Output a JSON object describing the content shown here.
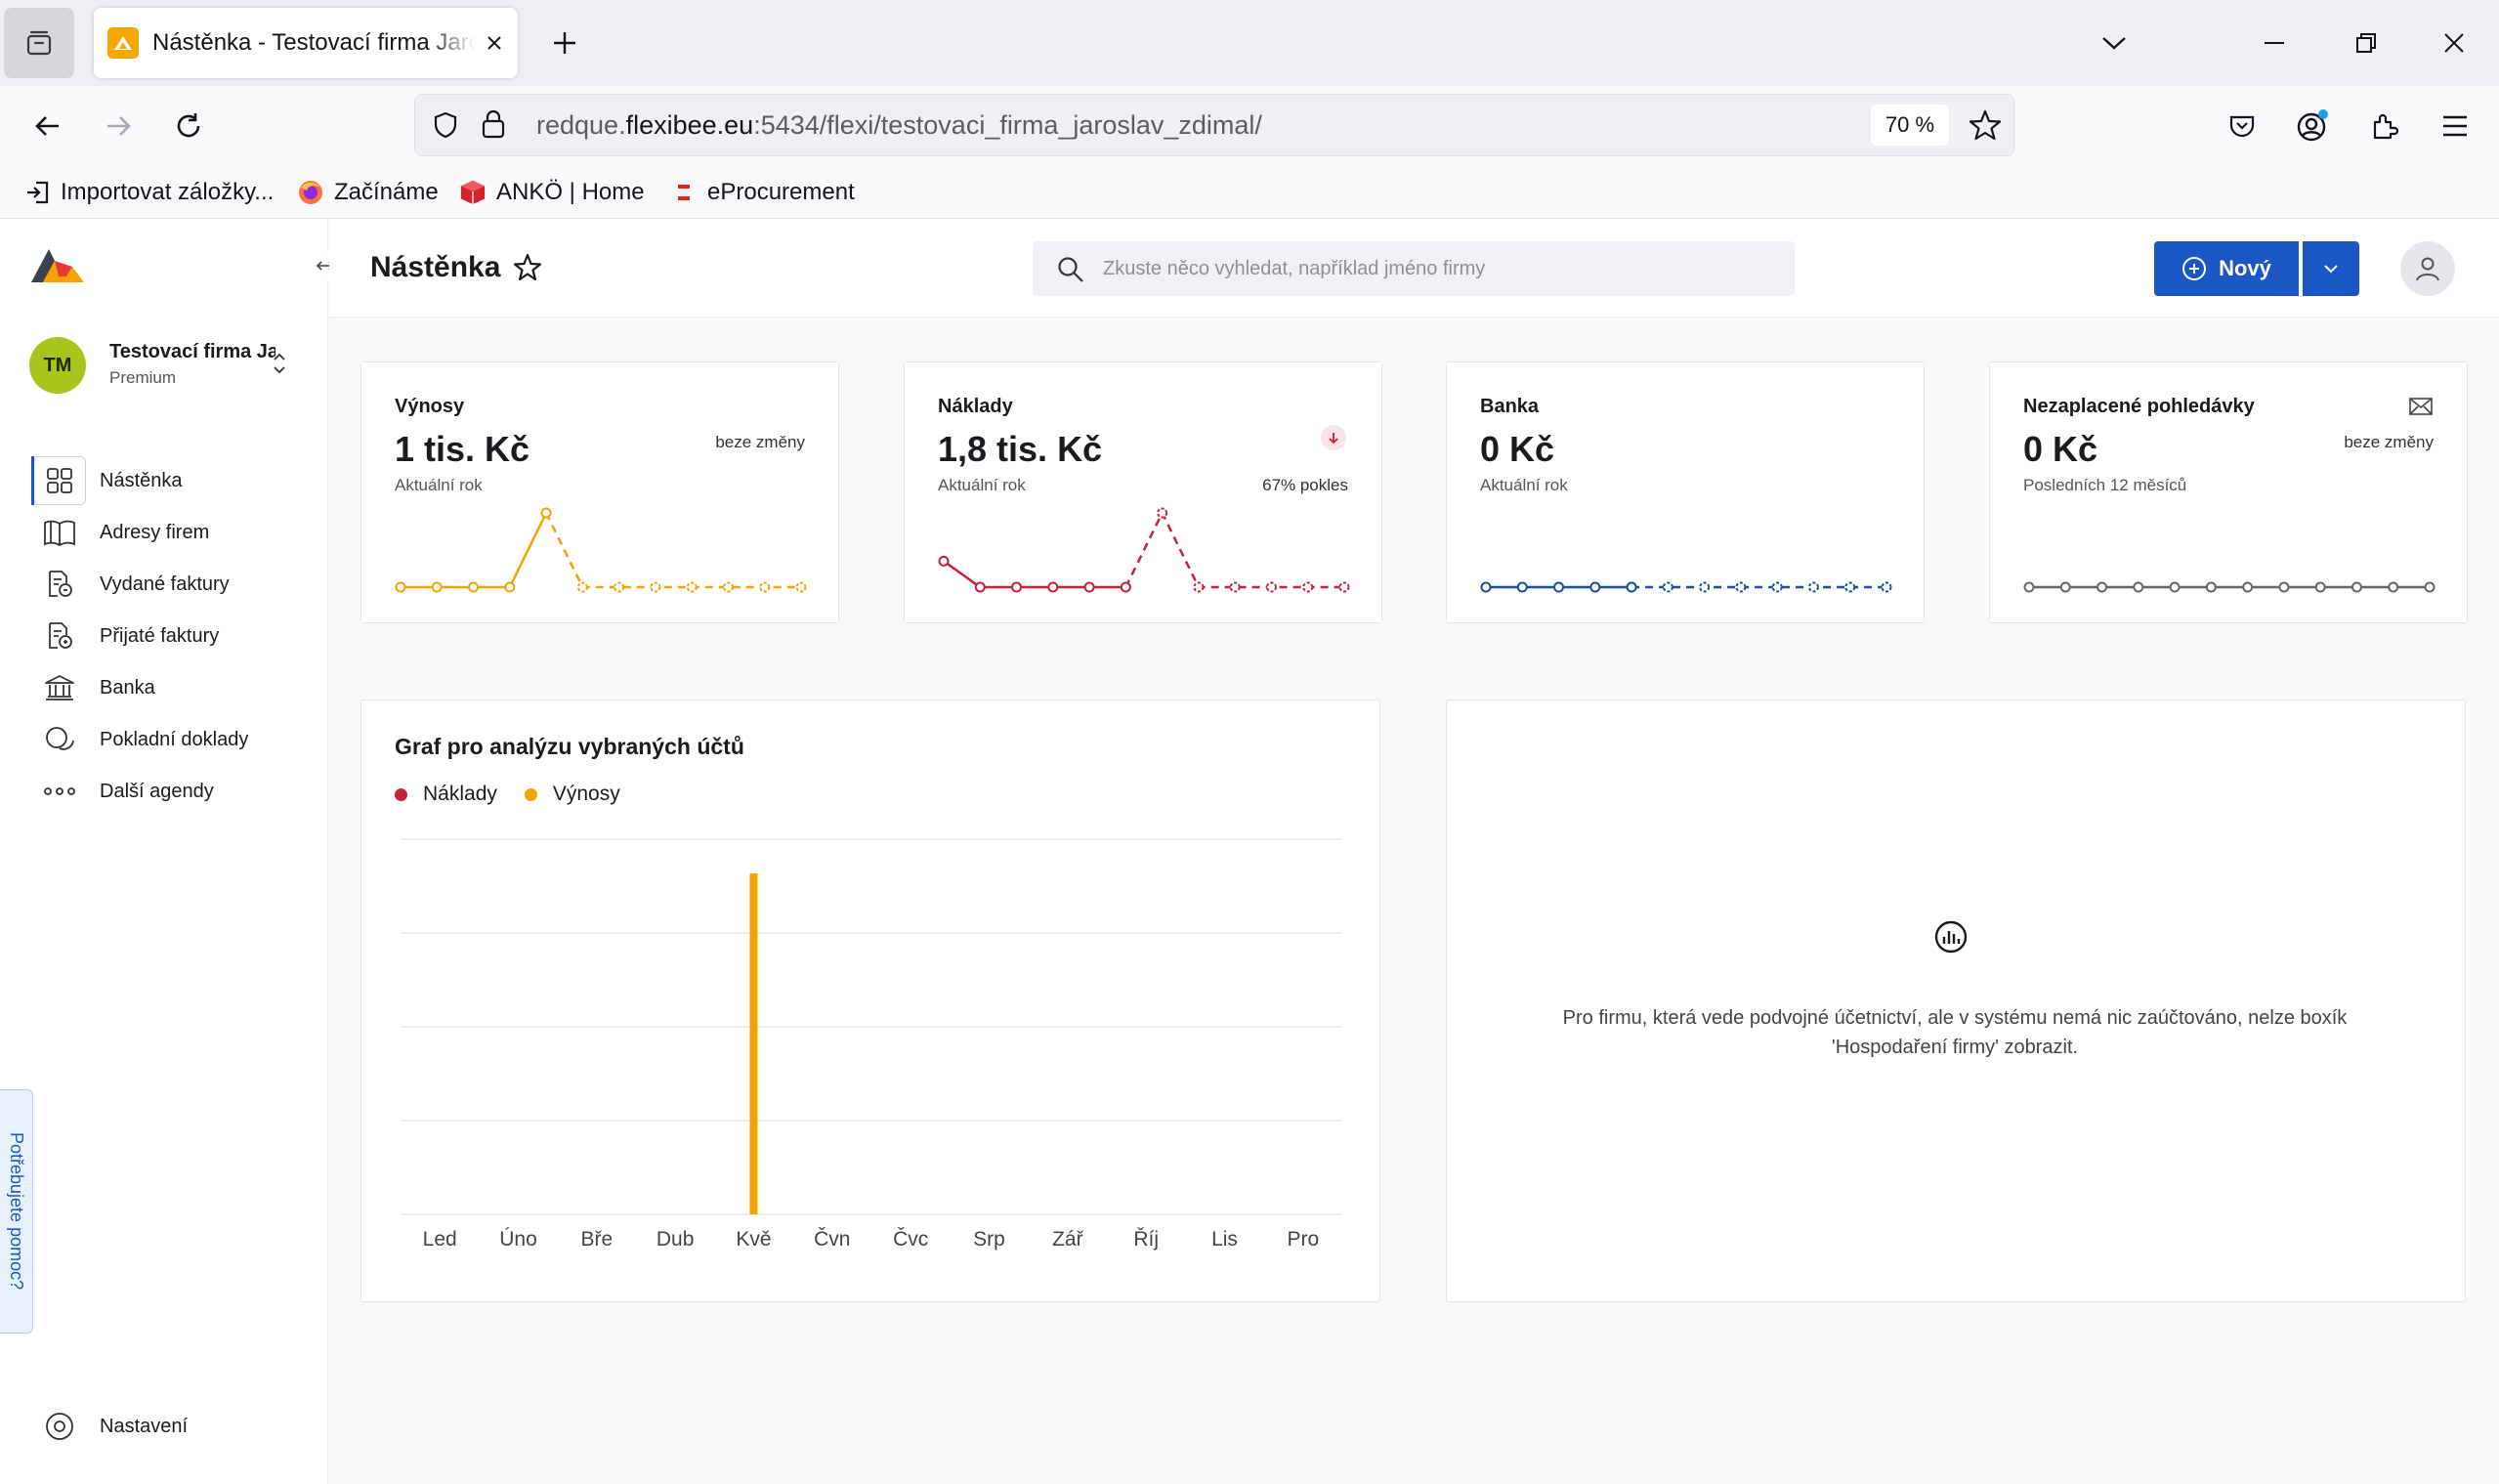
{
  "browser": {
    "tab_title": "Nástěnka - Testovací firma Jaroslav Zdimal",
    "url_domain_prefix": "redque.",
    "url_domain": "flexibee.eu",
    "url_rest": ":5434/flexi/testovaci_firma_jaroslav_zdimal/",
    "zoom": "70 %",
    "bookmarks": [
      {
        "label": "Importovat záložky...",
        "icon": "import-icon"
      },
      {
        "label": "Začínáme",
        "icon": "firefox-icon"
      },
      {
        "label": "ANKÖ | Home",
        "icon": "anko-icon"
      },
      {
        "label": "eProcurement",
        "icon": "eprocurement-icon"
      }
    ]
  },
  "sidebar": {
    "company_initials": "TM",
    "company_name": "Testovací firma Jaroslav Zdimal",
    "company_plan": "Premium",
    "items": [
      {
        "label": "Nástěnka",
        "icon": "dashboard-icon",
        "active": true
      },
      {
        "label": "Adresy firem",
        "icon": "book-icon"
      },
      {
        "label": "Vydané faktury",
        "icon": "invoice-out-icon"
      },
      {
        "label": "Přijaté faktury",
        "icon": "invoice-in-icon"
      },
      {
        "label": "Banka",
        "icon": "bank-icon"
      },
      {
        "label": "Pokladní doklady",
        "icon": "cash-icon"
      },
      {
        "label": "Další agendy",
        "icon": "more-icon"
      }
    ],
    "settings_label": "Nastavení",
    "help_label": "Potřebujete pomoc?"
  },
  "header": {
    "title": "Nástěnka",
    "search_placeholder": "Zkuste něco vyhledat, například jméno firmy",
    "new_label": "Nový"
  },
  "kpis": [
    {
      "title": "Výnosy",
      "value": "1 tis. Kč",
      "period": "Aktuální rok",
      "change": "beze změny",
      "color": "#f5a300"
    },
    {
      "title": "Náklady",
      "value": "1,8 tis. Kč",
      "period": "Aktuální rok",
      "change": "67% pokles",
      "color": "#c8203f"
    },
    {
      "title": "Banka",
      "value": "0  Kč",
      "period": "Aktuální rok",
      "change": "",
      "color": "#1a4f9c"
    },
    {
      "title": "Nezaplacené pohledávky",
      "value": "0  Kč",
      "period": "Posledních 12 měsíců",
      "change": "beze změny",
      "color": "#666666"
    }
  ],
  "analysis_chart": {
    "title": "Graf pro analýzu vybraných účtů",
    "legend": [
      {
        "name": "Náklady",
        "color": "#c8203f"
      },
      {
        "name": "Výnosy",
        "color": "#f5a300"
      }
    ]
  },
  "chart_data": {
    "type": "bar",
    "categories": [
      "Led",
      "Úno",
      "Bře",
      "Dub",
      "Kvě",
      "Čvn",
      "Čvc",
      "Srp",
      "Zář",
      "Říj",
      "Lis",
      "Pro"
    ],
    "series": [
      {
        "name": "Náklady",
        "color": "#c8203f",
        "values": [
          0,
          0,
          0,
          0,
          0,
          0,
          0,
          0,
          0,
          0,
          0,
          0
        ]
      },
      {
        "name": "Výnosy",
        "color": "#f5a300",
        "values": [
          0,
          0,
          0,
          0,
          1,
          0,
          0,
          0,
          0,
          0,
          0,
          0
        ]
      }
    ],
    "ylim": [
      0,
      1.1
    ],
    "grid": true,
    "legend_position": "top-left"
  },
  "sparklines": [
    {
      "series": "Výnosy",
      "solid": [
        0,
        0,
        0,
        0,
        1
      ],
      "dashed": [
        1,
        0,
        0,
        0,
        0,
        0,
        0,
        0,
        0,
        0,
        0,
        0
      ]
    },
    {
      "series": "Náklady",
      "solid": [
        0.35,
        0,
        0,
        0,
        0,
        0
      ],
      "dashed": [
        0,
        1,
        0,
        0,
        0,
        0,
        0,
        0,
        0,
        0,
        0,
        0
      ]
    },
    {
      "series": "Banka",
      "solid": [
        0,
        0,
        0,
        0,
        0
      ],
      "dashed": [
        0,
        0,
        0,
        0,
        0,
        0,
        0,
        0,
        0,
        0,
        0,
        0
      ]
    },
    {
      "series": "Nezaplacené pohledávky",
      "solid": [
        0,
        0,
        0,
        0,
        0,
        0,
        0,
        0,
        0,
        0,
        0,
        0
      ],
      "dashed": []
    }
  ],
  "hospodareni": {
    "message": "Pro firmu, která vede podvojné účetnictví, ale v systému nemá nic zaúčtováno, nelze boxík 'Hospodaření firmy' zobrazit."
  }
}
